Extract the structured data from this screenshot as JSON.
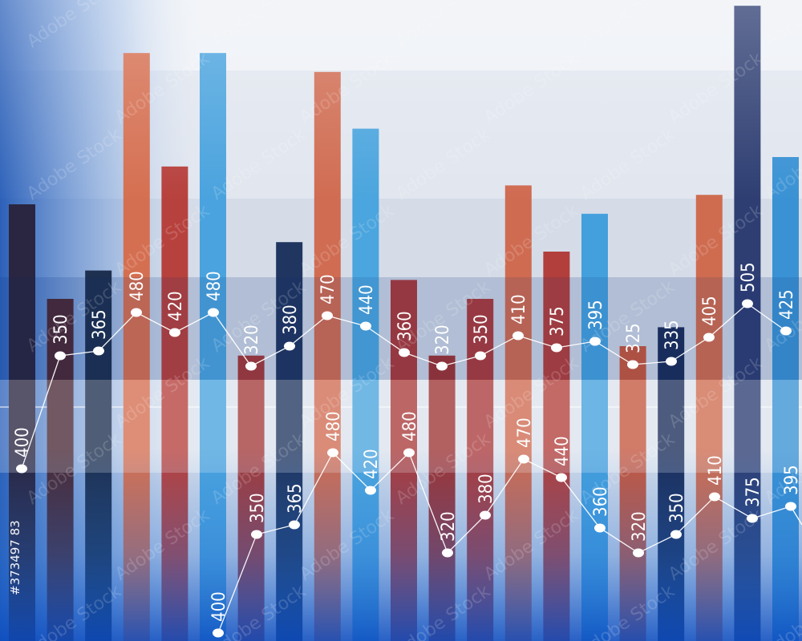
{
  "chart_data": {
    "type": "bar",
    "description_free": true,
    "bar_series": {
      "values": [
        400,
        350,
        365,
        480,
        420,
        480,
        320,
        380,
        470,
        440,
        360,
        320,
        350,
        410,
        375,
        395,
        325,
        335,
        405,
        505,
        425
      ],
      "colors": [
        "#2a2540",
        "#4a2a36",
        "#1e3050",
        "#d56f51",
        "#b7413d",
        "#4aa3de",
        "#a33a3a",
        "#203660",
        "#d06c52",
        "#4ba5de",
        "#aa3b3c",
        "#9d3434",
        "#ab3c3d",
        "#cf6b51",
        "#b23f3c",
        "#44a0dd",
        "#c5573f",
        "#1c2e5a",
        "#cf6c50",
        "#2e3e72",
        "#3a92d4"
      ]
    },
    "line_series_upper": {
      "labels": [
        "400",
        "350",
        "365",
        "480",
        "420",
        "480",
        "320",
        "380",
        "470",
        "440",
        "360",
        "320",
        "350",
        "410",
        "375",
        "395",
        "325",
        "335",
        "405",
        "505",
        "425"
      ]
    },
    "line_series_lower": {
      "labels": [
        "400",
        "350",
        "365",
        "480",
        "420",
        "480",
        "320",
        "380",
        "470",
        "440",
        "360",
        "320",
        "350",
        "410",
        "375",
        "395"
      ]
    },
    "grid": true,
    "legend": "none"
  },
  "watermark": {
    "text": "Adobe Stock",
    "id": "#373497 83"
  },
  "palette": {
    "background": "#e4e8f0",
    "band_mid": "#dce2ec",
    "accent_blue": "#1a5fc8"
  }
}
